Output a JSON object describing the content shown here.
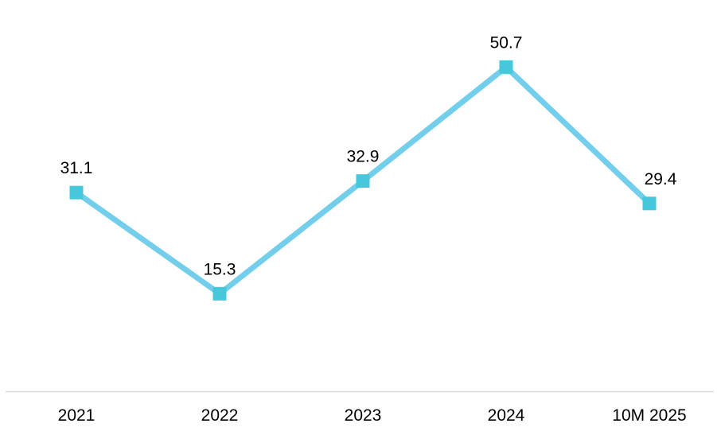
{
  "chart_data": {
    "type": "line",
    "title": "",
    "xlabel": "",
    "ylabel": "",
    "categories": [
      "2021",
      "2022",
      "2023",
      "2024",
      "10M 2025"
    ],
    "values": [
      31.1,
      15.3,
      32.9,
      50.7,
      29.4
    ],
    "data_labels": [
      "31.1",
      "15.3",
      "32.9",
      "50.7",
      "29.4"
    ],
    "label_dx": [
      0,
      0,
      0,
      0,
      14
    ],
    "ylim": [
      0,
      60
    ],
    "grid": false,
    "legend": "none",
    "marker_shape": "square",
    "colors": {
      "line": "#72CEEB",
      "marker": "#46C8DA",
      "axis_line": "#D9D9D9",
      "data_label": "#000000",
      "tick_label": "#000000",
      "background": "#FFFFFF"
    }
  }
}
